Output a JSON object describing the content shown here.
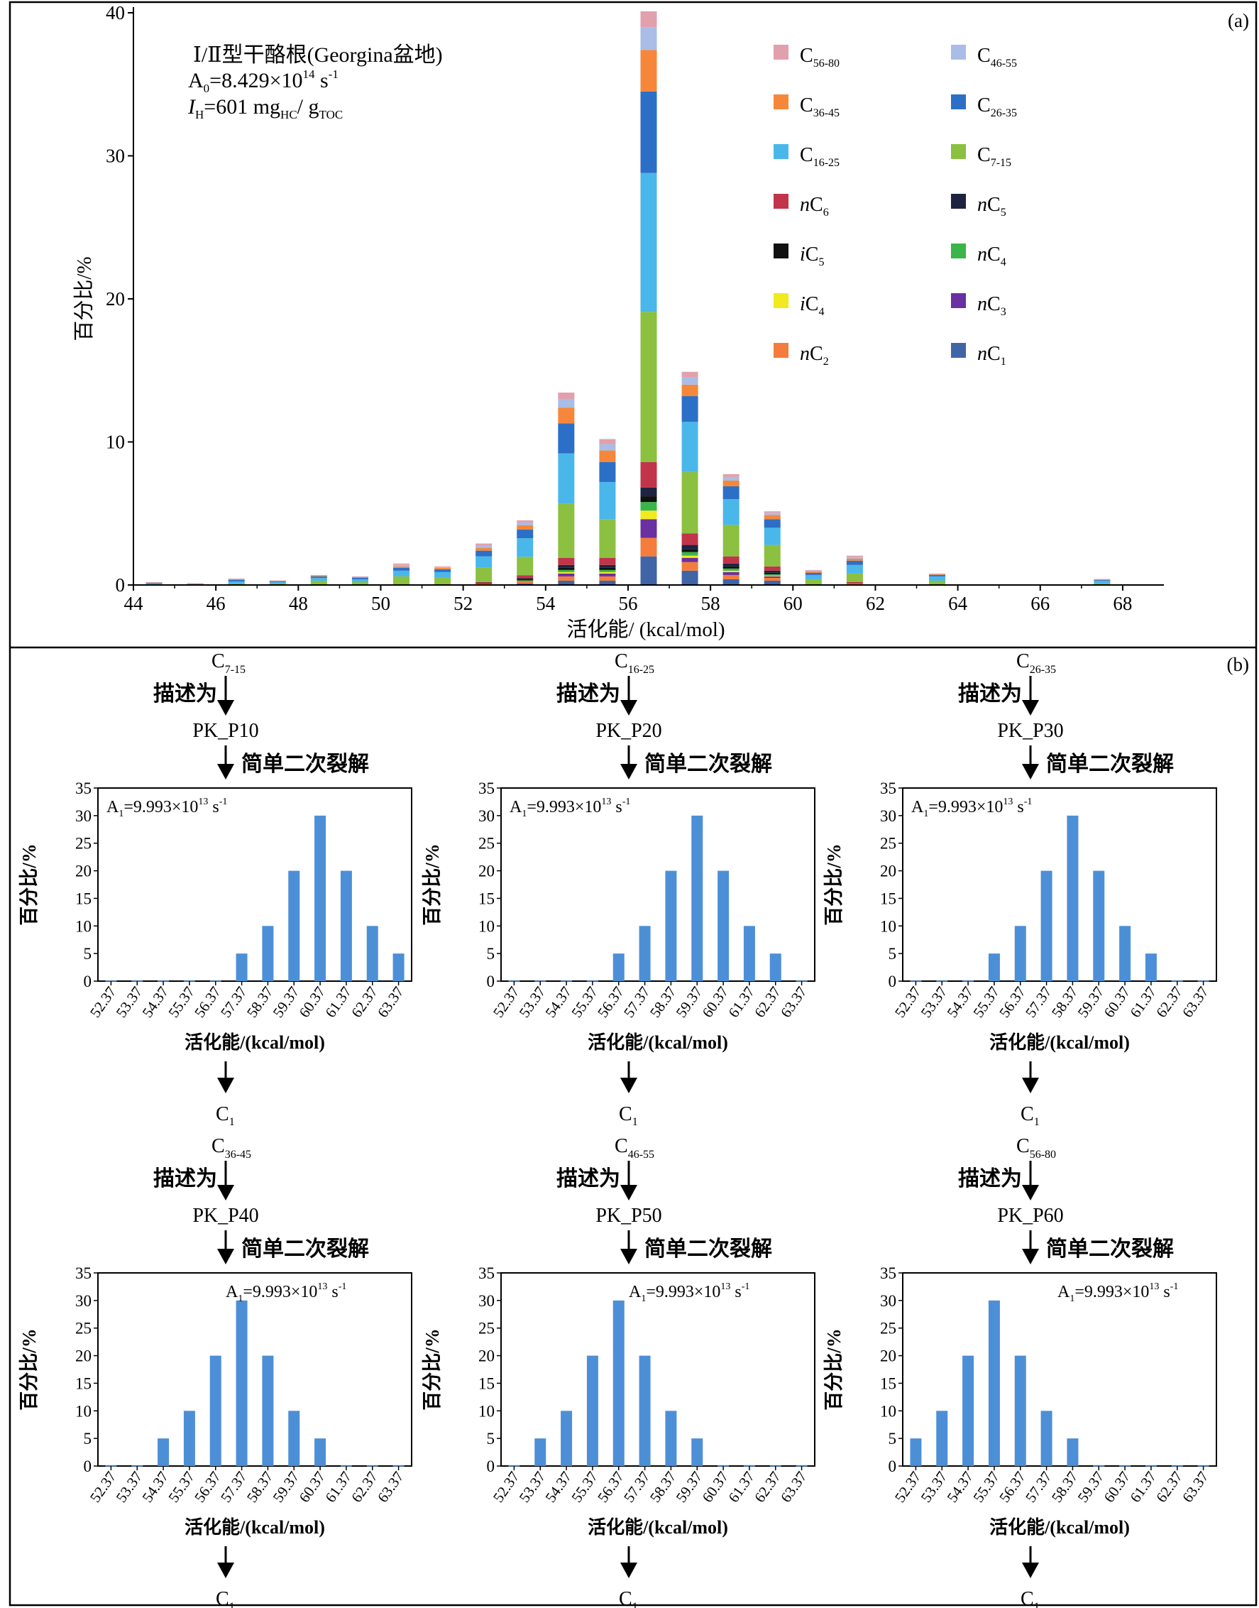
{
  "panel_a": {
    "label": "(a)",
    "info": {
      "line1": "Ⅰ/Ⅱ型干酪根(Georgina盆地)",
      "a0_prefix": "A",
      "a0_sub": "0",
      "a0_value": "=8.429×10",
      "a0_exp": "14",
      "a0_unit": " s",
      "a0_unit_exp": "-1",
      "ih_prefix": "I",
      "ih_sub": "H",
      "ih_value": "=601 mg",
      "ih_sub2": "HC",
      "ih_slash": "/ g",
      "ih_sub3": "TOC"
    }
  },
  "panel_b": {
    "label": "(b)",
    "describe_label": "描述为",
    "crack_label": "简单二次裂解",
    "output_main": "C",
    "output_sub": "1",
    "a1_prefix": "A",
    "a1_sub": "1",
    "a1_value": "=9.993×10",
    "a1_exp": "13",
    "a1_unit": " s",
    "a1_unit_exp": "-1",
    "groups": [
      {
        "source_main": "C",
        "source_sub": "7-15",
        "model": "PK_P10"
      },
      {
        "source_main": "C",
        "source_sub": "16-25",
        "model": "PK_P20"
      },
      {
        "source_main": "C",
        "source_sub": "26-35",
        "model": "PK_P30"
      },
      {
        "source_main": "C",
        "source_sub": "36-45",
        "model": "PK_P40"
      },
      {
        "source_main": "C",
        "source_sub": "46-55",
        "model": "PK_P50"
      },
      {
        "source_main": "C",
        "source_sub": "56-80",
        "model": "PK_P60"
      }
    ]
  },
  "colors": {
    "nC1": "#3f65a7",
    "nC2": "#f47c3c",
    "nC3": "#6a2fa0",
    "iC4": "#f2ea1e",
    "nC4": "#39b54a",
    "iC5": "#111111",
    "nC5": "#1d2340",
    "nC6": "#c1344a",
    "C7-15": "#8bc040",
    "C16-25": "#4ab7ea",
    "C26-35": "#2c6fc7",
    "C36-45": "#f6873a",
    "C46-55": "#a9bde6",
    "C56-80": "#e1a0ad",
    "small_bar": "#4d8fd7"
  },
  "chart_data": [
    {
      "type": "bar",
      "stacked": true,
      "title": "",
      "xlabel": "活化能/ (kcal/mol)",
      "ylabel": "百分比/%",
      "xlim": [
        44,
        69
      ],
      "ylim": [
        0,
        40
      ],
      "xticks": [
        44,
        46,
        48,
        50,
        52,
        54,
        56,
        58,
        60,
        62,
        64,
        66,
        68
      ],
      "yticks": [
        0,
        10,
        20,
        30,
        40
      ],
      "legend_position": "top-right",
      "x": [
        44.5,
        45.5,
        46.5,
        47.5,
        48.5,
        49.5,
        50.5,
        51.5,
        52.5,
        53.5,
        54.5,
        55.5,
        56.5,
        57.5,
        58.5,
        59.5,
        60.5,
        61.5,
        62.5,
        63.5,
        67.5
      ],
      "series": [
        {
          "key": "nC1",
          "name": "nC1",
          "label_pre": "n",
          "label_main": "C",
          "label_sub": "1",
          "values": [
            0,
            0,
            0,
            0,
            0,
            0,
            0,
            0,
            0.05,
            0.1,
            0.3,
            0.3,
            2.0,
            1.0,
            0.4,
            0.3,
            0,
            0.05,
            0,
            0,
            0
          ]
        },
        {
          "key": "nC2",
          "name": "nC2",
          "label_pre": "n",
          "label_main": "C",
          "label_sub": "2",
          "values": [
            0,
            0,
            0,
            0,
            0,
            0,
            0,
            0,
            0.05,
            0.1,
            0.3,
            0.3,
            1.3,
            0.6,
            0.3,
            0.2,
            0,
            0.05,
            0,
            0,
            0
          ]
        },
        {
          "key": "nC3",
          "name": "nC3",
          "label_pre": "n",
          "label_main": "C",
          "label_sub": "3",
          "values": [
            0,
            0,
            0,
            0,
            0,
            0,
            0,
            0,
            0,
            0.05,
            0.2,
            0.2,
            1.3,
            0.3,
            0.2,
            0.1,
            0,
            0,
            0,
            0,
            0
          ]
        },
        {
          "key": "iC4",
          "name": "iC4",
          "label_pre": "i",
          "label_main": "C",
          "label_sub": "4",
          "values": [
            0,
            0,
            0,
            0,
            0,
            0,
            0,
            0,
            0,
            0.02,
            0.1,
            0.1,
            0.6,
            0.15,
            0.1,
            0.05,
            0,
            0,
            0,
            0,
            0
          ]
        },
        {
          "key": "nC4",
          "name": "nC4",
          "label_pre": "n",
          "label_main": "C",
          "label_sub": "4",
          "values": [
            0,
            0,
            0,
            0,
            0,
            0,
            0,
            0,
            0,
            0.05,
            0.15,
            0.15,
            0.6,
            0.25,
            0.15,
            0.1,
            0,
            0,
            0,
            0,
            0
          ]
        },
        {
          "key": "iC5",
          "name": "iC5",
          "label_pre": "i",
          "label_main": "C",
          "label_sub": "5",
          "values": [
            0,
            0,
            0,
            0,
            0,
            0,
            0,
            0,
            0,
            0.05,
            0.15,
            0.15,
            0.4,
            0.2,
            0.15,
            0.1,
            0,
            0,
            0,
            0,
            0
          ]
        },
        {
          "key": "nC5",
          "name": "nC5",
          "label_pre": "n",
          "label_main": "C",
          "label_sub": "5",
          "values": [
            0,
            0,
            0,
            0,
            0,
            0,
            0,
            0,
            0.05,
            0.1,
            0.2,
            0.2,
            0.6,
            0.3,
            0.2,
            0.15,
            0,
            0,
            0,
            0,
            0
          ]
        },
        {
          "key": "nC6",
          "name": "nC6",
          "label_pre": "n",
          "label_main": "C",
          "label_sub": "6",
          "values": [
            0,
            0,
            0,
            0,
            0,
            0,
            0,
            0,
            0.05,
            0.2,
            0.5,
            0.5,
            1.8,
            0.8,
            0.5,
            0.3,
            0,
            0.1,
            0,
            0,
            0
          ]
        },
        {
          "key": "C7-15",
          "name": "C7-15",
          "label_pre": "",
          "label_main": "C",
          "label_sub": "7-15",
          "values": [
            0.05,
            0,
            0.1,
            0.1,
            0.3,
            0.2,
            0.6,
            0.5,
            1.0,
            1.3,
            3.8,
            2.7,
            10.5,
            4.3,
            2.2,
            1.5,
            0.4,
            0.6,
            0,
            0.3,
            0.1
          ]
        },
        {
          "key": "C16-25",
          "name": "C16-25",
          "label_pre": "",
          "label_main": "C",
          "label_sub": "16-25",
          "values": [
            0.05,
            0.05,
            0.15,
            0.1,
            0.2,
            0.2,
            0.4,
            0.4,
            0.8,
            1.3,
            3.5,
            2.6,
            9.7,
            3.5,
            1.8,
            1.2,
            0.3,
            0.6,
            0,
            0.3,
            0.2
          ]
        },
        {
          "key": "C26-35",
          "name": "C26-35",
          "label_pre": "",
          "label_main": "C",
          "label_sub": "26-35",
          "values": [
            0.05,
            0.03,
            0.1,
            0.05,
            0.1,
            0.1,
            0.2,
            0.2,
            0.4,
            0.6,
            2.1,
            1.4,
            5.7,
            1.8,
            0.9,
            0.6,
            0.15,
            0.3,
            0,
            0.1,
            0.05
          ]
        },
        {
          "key": "C36-45",
          "name": "C36-45",
          "label_pre": "",
          "label_main": "C",
          "label_sub": "36-45",
          "values": [
            0.02,
            0.02,
            0.05,
            0.03,
            0.05,
            0.05,
            0.1,
            0.1,
            0.2,
            0.3,
            1.1,
            0.8,
            2.9,
            0.8,
            0.4,
            0.3,
            0.1,
            0.15,
            0,
            0.05,
            0.03
          ]
        },
        {
          "key": "C46-55",
          "name": "C46-55",
          "label_pre": "",
          "label_main": "C",
          "label_sub": "46-55",
          "values": [
            0.02,
            0.01,
            0.03,
            0.02,
            0.03,
            0.03,
            0.1,
            0.05,
            0.15,
            0.2,
            0.6,
            0.45,
            1.6,
            0.5,
            0.25,
            0.15,
            0.05,
            0.1,
            0,
            0.03,
            0.02
          ]
        },
        {
          "key": "C56-80",
          "name": "C56-80",
          "label_pre": "",
          "label_main": "C",
          "label_sub": "56-80",
          "values": [
            0.01,
            0.01,
            0.02,
            0.02,
            0.02,
            0.02,
            0.1,
            0.05,
            0.15,
            0.15,
            0.45,
            0.35,
            1.1,
            0.4,
            0.2,
            0.1,
            0.05,
            0.1,
            0,
            0.02,
            0.02
          ]
        }
      ]
    },
    {
      "type": "bar",
      "xlabel": "活化能/(kcal/mol)",
      "ylabel": "百分比/%",
      "ylim": [
        0,
        35
      ],
      "yticks": [
        0,
        5,
        10,
        15,
        20,
        25,
        30,
        35
      ],
      "categories": [
        "52.37",
        "53.37",
        "54.37",
        "55.37",
        "56.37",
        "57.37",
        "58.37",
        "59.37",
        "60.37",
        "61.37",
        "62.37",
        "63.37"
      ],
      "values": [
        0,
        0,
        0,
        0,
        0,
        5,
        10,
        20,
        30,
        20,
        10,
        5
      ]
    },
    {
      "type": "bar",
      "xlabel": "活化能/(kcal/mol)",
      "ylabel": "百分比/%",
      "ylim": [
        0,
        35
      ],
      "yticks": [
        0,
        5,
        10,
        15,
        20,
        25,
        30,
        35
      ],
      "categories": [
        "52.37",
        "53.37",
        "54.37",
        "55.37",
        "56.37",
        "57.37",
        "58.37",
        "59.37",
        "60.37",
        "61.37",
        "62.37",
        "63.37"
      ],
      "values": [
        0,
        0,
        0,
        0,
        5,
        10,
        20,
        30,
        20,
        10,
        5,
        0
      ]
    },
    {
      "type": "bar",
      "xlabel": "活化能/(kcal/mol)",
      "ylabel": "百分比/%",
      "ylim": [
        0,
        35
      ],
      "yticks": [
        0,
        5,
        10,
        15,
        20,
        25,
        30,
        35
      ],
      "categories": [
        "52.37",
        "53.37",
        "54.37",
        "55.37",
        "56.37",
        "57.37",
        "58.37",
        "59.37",
        "60.37",
        "61.37",
        "62.37",
        "63.37"
      ],
      "values": [
        0,
        0,
        0,
        5,
        10,
        20,
        30,
        20,
        10,
        5,
        0,
        0
      ]
    },
    {
      "type": "bar",
      "xlabel": "活化能/(kcal/mol)",
      "ylabel": "百分比/%",
      "ylim": [
        0,
        35
      ],
      "yticks": [
        0,
        5,
        10,
        15,
        20,
        25,
        30,
        35
      ],
      "categories": [
        "52.37",
        "53.37",
        "54.37",
        "55.37",
        "56.37",
        "57.37",
        "58.37",
        "59.37",
        "60.37",
        "61.37",
        "62.37",
        "63.37"
      ],
      "values": [
        0,
        0,
        5,
        10,
        20,
        30,
        20,
        10,
        5,
        0,
        0,
        0
      ]
    },
    {
      "type": "bar",
      "xlabel": "活化能/(kcal/mol)",
      "ylabel": "百分比/%",
      "ylim": [
        0,
        35
      ],
      "yticks": [
        0,
        5,
        10,
        15,
        20,
        25,
        30,
        35
      ],
      "categories": [
        "52.37",
        "53.37",
        "54.37",
        "55.37",
        "56.37",
        "57.37",
        "58.37",
        "59.37",
        "60.37",
        "61.37",
        "62.37",
        "63.37"
      ],
      "values": [
        0,
        5,
        10,
        20,
        30,
        20,
        10,
        5,
        0,
        0,
        0,
        0
      ]
    },
    {
      "type": "bar",
      "xlabel": "活化能/(kcal/mol)",
      "ylabel": "百分比/%",
      "ylim": [
        0,
        35
      ],
      "yticks": [
        0,
        5,
        10,
        15,
        20,
        25,
        30,
        35
      ],
      "categories": [
        "52.37",
        "53.37",
        "54.37",
        "55.37",
        "56.37",
        "57.37",
        "58.37",
        "59.37",
        "60.37",
        "61.37",
        "62.37",
        "63.37"
      ],
      "values": [
        5,
        10,
        20,
        30,
        20,
        10,
        5,
        0,
        0,
        0,
        0,
        0
      ]
    }
  ]
}
